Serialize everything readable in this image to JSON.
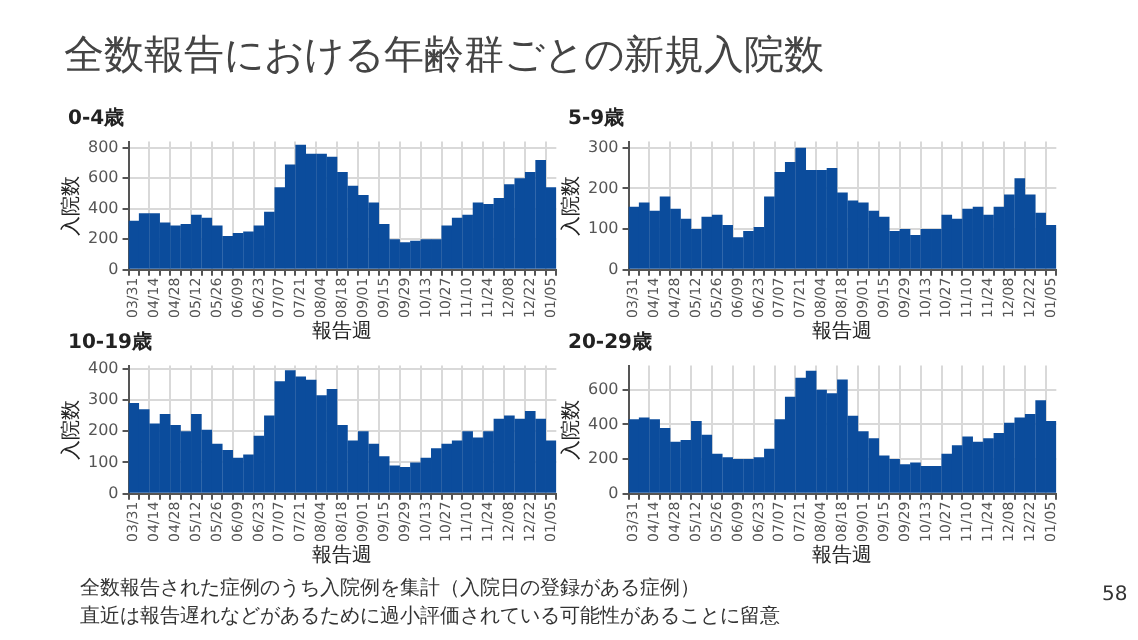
{
  "chart_data": [
    {
      "type": "bar",
      "title": "0-4歳",
      "xlabel": "報告週",
      "ylabel": "入院数",
      "categories": [
        "03/31",
        null,
        "04/14",
        null,
        "04/28",
        null,
        "05/12",
        null,
        "05/26",
        null,
        "06/09",
        null,
        "06/23",
        null,
        "07/07",
        null,
        "07/21",
        null,
        "08/04",
        null,
        "08/18",
        null,
        "09/01",
        null,
        "09/15",
        null,
        "09/29",
        null,
        "10/13",
        null,
        "10/27",
        null,
        "11/10",
        null,
        "11/24",
        null,
        "12/08",
        null,
        "12/22",
        null,
        "01/05"
      ],
      "series": [
        {
          "color": "#0b4c9c",
          "values": [
            320,
            370,
            370,
            310,
            290,
            300,
            360,
            340,
            290,
            220,
            240,
            250,
            290,
            380,
            540,
            690,
            820,
            760,
            760,
            740,
            640,
            550,
            490,
            440,
            300,
            200,
            180,
            190,
            200,
            200,
            290,
            340,
            360,
            440,
            430,
            470,
            560,
            600,
            640,
            720,
            540
          ]
        }
      ],
      "ylim": [
        0,
        840
      ],
      "yticks": [
        0,
        200,
        400,
        600,
        800
      ],
      "grid": true,
      "annotations": [
        "全数報告された症例のうち入院例を集計（入院日の登録がある症例）",
        "直近は報告遅れなどがあるために過小評価されている可能性があることに留意",
        "58"
      ],
      "subtitle": "全数報告における年齢群ごとの新規入院数"
    },
    {
      "type": "bar",
      "title": "5-9歳",
      "xlabel": "報告週",
      "ylabel": "入院数",
      "categories": [
        "03/31",
        null,
        "04/14",
        null,
        "04/28",
        null,
        "05/12",
        null,
        "05/26",
        null,
        "06/09",
        null,
        "06/23",
        null,
        "07/07",
        null,
        "07/21",
        null,
        "08/04",
        null,
        "08/18",
        null,
        "09/01",
        null,
        "09/15",
        null,
        "09/29",
        null,
        "10/13",
        null,
        "10/27",
        null,
        "11/10",
        null,
        "11/24",
        null,
        "12/08",
        null,
        "12/22",
        null,
        "01/05"
      ],
      "series": [
        {
          "color": "#0b4c9c",
          "values": [
            155,
            165,
            145,
            180,
            150,
            125,
            100,
            130,
            135,
            110,
            80,
            95,
            105,
            180,
            240,
            265,
            300,
            245,
            245,
            250,
            190,
            170,
            165,
            145,
            130,
            95,
            100,
            85,
            100,
            100,
            135,
            125,
            150,
            155,
            135,
            155,
            185,
            225,
            185,
            140,
            110
          ]
        }
      ],
      "ylim": [
        0,
        315
      ],
      "yticks": [
        0,
        100,
        200,
        300
      ],
      "grid": true
    },
    {
      "type": "bar",
      "title": "10-19歳",
      "xlabel": "報告週",
      "ylabel": "入院数",
      "categories": [
        "03/31",
        null,
        "04/14",
        null,
        "04/28",
        null,
        "05/12",
        null,
        "05/26",
        null,
        "06/09",
        null,
        "06/23",
        null,
        "07/07",
        null,
        "07/21",
        null,
        "08/04",
        null,
        "08/18",
        null,
        "09/01",
        null,
        "09/15",
        null,
        "09/29",
        null,
        "10/13",
        null,
        "10/27",
        null,
        "11/10",
        null,
        "11/24",
        null,
        "12/08",
        null,
        "12/22",
        null,
        "01/05"
      ],
      "series": [
        {
          "color": "#0b4c9c",
          "values": [
            290,
            270,
            225,
            255,
            220,
            200,
            255,
            205,
            160,
            140,
            115,
            125,
            185,
            250,
            360,
            395,
            375,
            365,
            315,
            335,
            220,
            170,
            200,
            160,
            120,
            90,
            85,
            100,
            115,
            145,
            160,
            170,
            200,
            180,
            200,
            240,
            250,
            240,
            265,
            240,
            170
          ]
        }
      ],
      "ylim": [
        0,
        410
      ],
      "yticks": [
        0,
        100,
        200,
        300,
        400
      ],
      "grid": true
    },
    {
      "type": "bar",
      "title": "20-29歳",
      "xlabel": "報告週",
      "ylabel": "入院数",
      "categories": [
        "03/31",
        null,
        "04/14",
        null,
        "04/28",
        null,
        "05/12",
        null,
        "05/26",
        null,
        "06/09",
        null,
        "06/23",
        null,
        "07/07",
        null,
        "07/21",
        null,
        "08/04",
        null,
        "08/18",
        null,
        "09/01",
        null,
        "09/15",
        null,
        "09/29",
        null,
        "10/13",
        null,
        "10/27",
        null,
        "11/10",
        null,
        "11/24",
        null,
        "12/08",
        null,
        "12/22",
        null,
        "01/05"
      ],
      "series": [
        {
          "color": "#0b4c9c",
          "values": [
            430,
            440,
            430,
            380,
            300,
            310,
            420,
            340,
            230,
            210,
            200,
            200,
            210,
            260,
            430,
            560,
            670,
            710,
            600,
            580,
            660,
            450,
            360,
            320,
            220,
            200,
            170,
            180,
            160,
            160,
            230,
            280,
            330,
            300,
            320,
            350,
            410,
            440,
            460,
            540,
            420
          ]
        }
      ],
      "ylim": [
        0,
        740
      ],
      "yticks": [
        0,
        200,
        400,
        600
      ],
      "grid": true
    }
  ]
}
